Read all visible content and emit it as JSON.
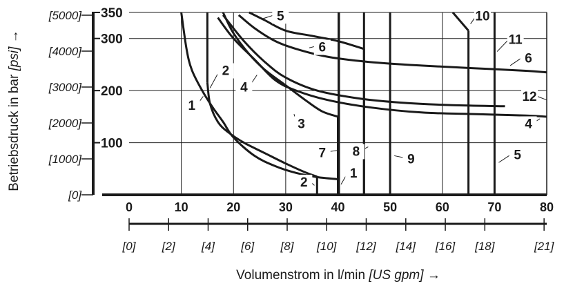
{
  "chart_data": {
    "type": "line",
    "xlabel": "Volumenstrom in l/min",
    "xlabel_unit": "[US gpm]",
    "xlabel_arrow": "→",
    "ylabel": "Betriebsdruck in bar",
    "ylabel_unit": "[psi]",
    "ylabel_arrow": "→",
    "xlim": [
      0,
      80
    ],
    "ylim": [
      0,
      350
    ],
    "grid": true,
    "x_ticks": [
      "0",
      "10",
      "20",
      "30",
      "40",
      "50",
      "60",
      "70",
      "80"
    ],
    "x_tick_values": [
      0,
      10,
      20,
      30,
      40,
      50,
      60,
      70,
      80
    ],
    "y_ticks": [
      "100",
      "200",
      "300",
      "350"
    ],
    "y_tick_values": [
      100,
      200,
      300,
      350
    ],
    "y2_ticks": [
      "[0]",
      "[1000]",
      "[2000]",
      "[3000]",
      "[4000]",
      "[5000]"
    ],
    "y2_tick_values": [
      0,
      68.9,
      137.9,
      206.8,
      275.8,
      344.7
    ],
    "x2_ticks": [
      "[0]",
      "[2]",
      "[4]",
      "[6]",
      "[8]",
      "[10]",
      "[12]",
      "[14]",
      "[16]",
      "[18]",
      "[21]"
    ],
    "x2_tick_values": [
      0,
      7.57,
      15.14,
      22.71,
      30.28,
      37.85,
      45.42,
      53.0,
      60.57,
      68.14,
      79.49
    ],
    "series": [
      {
        "name": "1",
        "x": [
          10,
          11,
          12,
          14,
          16,
          18,
          20,
          24,
          28,
          32,
          36,
          40
        ],
        "y": [
          350,
          280,
          240,
          200,
          168,
          140,
          110,
          75,
          55,
          42,
          34,
          30
        ]
      },
      {
        "name": "2",
        "x": [
          15,
          15,
          15.5,
          17,
          19,
          22,
          26,
          30,
          34,
          36,
          36
        ],
        "y": [
          350,
          215,
          175,
          140,
          120,
          100,
          80,
          60,
          42,
          35,
          0
        ]
      },
      {
        "name": "3",
        "x": [
          18,
          20,
          23,
          26,
          30,
          34,
          37,
          40,
          40
        ],
        "y": [
          350,
          310,
          270,
          240,
          210,
          180,
          160,
          150,
          0
        ]
      },
      {
        "name": "4",
        "x": [
          17,
          20,
          24,
          28,
          32,
          38,
          46,
          56,
          66,
          76,
          80
        ],
        "y": [
          340,
          300,
          260,
          220,
          200,
          182,
          168,
          158,
          155,
          152,
          150
        ]
      },
      {
        "name": "5",
        "x": [
          23,
          26,
          30,
          35,
          40,
          45,
          45
        ],
        "y": [
          350,
          335,
          315,
          305,
          295,
          280,
          0
        ]
      },
      {
        "name": "6",
        "x": [
          21,
          24,
          28,
          32,
          38,
          46,
          56,
          66,
          76,
          80
        ],
        "y": [
          345,
          320,
          295,
          280,
          265,
          255,
          248,
          243,
          238,
          235
        ]
      },
      {
        "name": "7",
        "x": [
          40.2,
          40.2
        ],
        "y": [
          350,
          0
        ]
      },
      {
        "name": "8",
        "x": [
          45,
          45
        ],
        "y": [
          350,
          0
        ]
      },
      {
        "name": "9",
        "x": [
          50,
          50
        ],
        "y": [
          350,
          0
        ]
      },
      {
        "name": "10",
        "x": [
          62,
          65,
          65
        ],
        "y": [
          350,
          315,
          0
        ]
      },
      {
        "name": "11",
        "x": [
          70,
          70
        ],
        "y": [
          350,
          0
        ]
      },
      {
        "name": "12",
        "x": [
          18,
          22,
          26,
          30,
          36,
          44,
          52,
          62,
          72
        ],
        "y": [
          345,
          295,
          255,
          225,
          200,
          185,
          177,
          172,
          170
        ]
      }
    ],
    "labels": [
      {
        "text": "1",
        "x": 12,
        "y": 163,
        "lx": 14.2,
        "ly": 189
      },
      {
        "text": "2",
        "x": 18.5,
        "y": 230,
        "lx": 15.5,
        "ly": 205
      },
      {
        "text": "3",
        "x": 33,
        "y": 128,
        "lx": 31.6,
        "ly": 155
      },
      {
        "text": "4",
        "x": 22,
        "y": 198,
        "lx": 24.5,
        "ly": 230
      },
      {
        "text": "5",
        "x": 29,
        "y": 335,
        "lx": 25.6,
        "ly": 338
      },
      {
        "text": "6",
        "x": 37,
        "y": 275,
        "lx": 34.5,
        "ly": 282
      },
      {
        "text": "1",
        "x": 43,
        "y": 33,
        "lx": 40.6,
        "ly": 20
      },
      {
        "text": "2",
        "x": 33.5,
        "y": 16,
        "lx": 35.5,
        "ly": 18
      },
      {
        "text": "7",
        "x": 37,
        "y": 72,
        "lx": 39.8,
        "ly": 85
      },
      {
        "text": "8",
        "x": 43.5,
        "y": 75,
        "lx": 45.8,
        "ly": 92
      },
      {
        "text": "9",
        "x": 54,
        "y": 60,
        "lx": 50.8,
        "ly": 75
      },
      {
        "text": "10",
        "x": 67.7,
        "y": 335,
        "lx": 65.4,
        "ly": 328
      },
      {
        "text": "11",
        "x": 74,
        "y": 290,
        "lx": 70.5,
        "ly": 275
      },
      {
        "text": "6",
        "x": 76.5,
        "y": 254,
        "lx": 73,
        "ly": 248
      },
      {
        "text": "12",
        "x": 76.7,
        "y": 180,
        "lx": 80,
        "ly": 182
      },
      {
        "text": "4",
        "x": 76.5,
        "y": 128,
        "lx": 78.7,
        "ly": 146
      },
      {
        "text": "5",
        "x": 74.4,
        "y": 68,
        "lx": 70.8,
        "ly": 62
      }
    ]
  }
}
